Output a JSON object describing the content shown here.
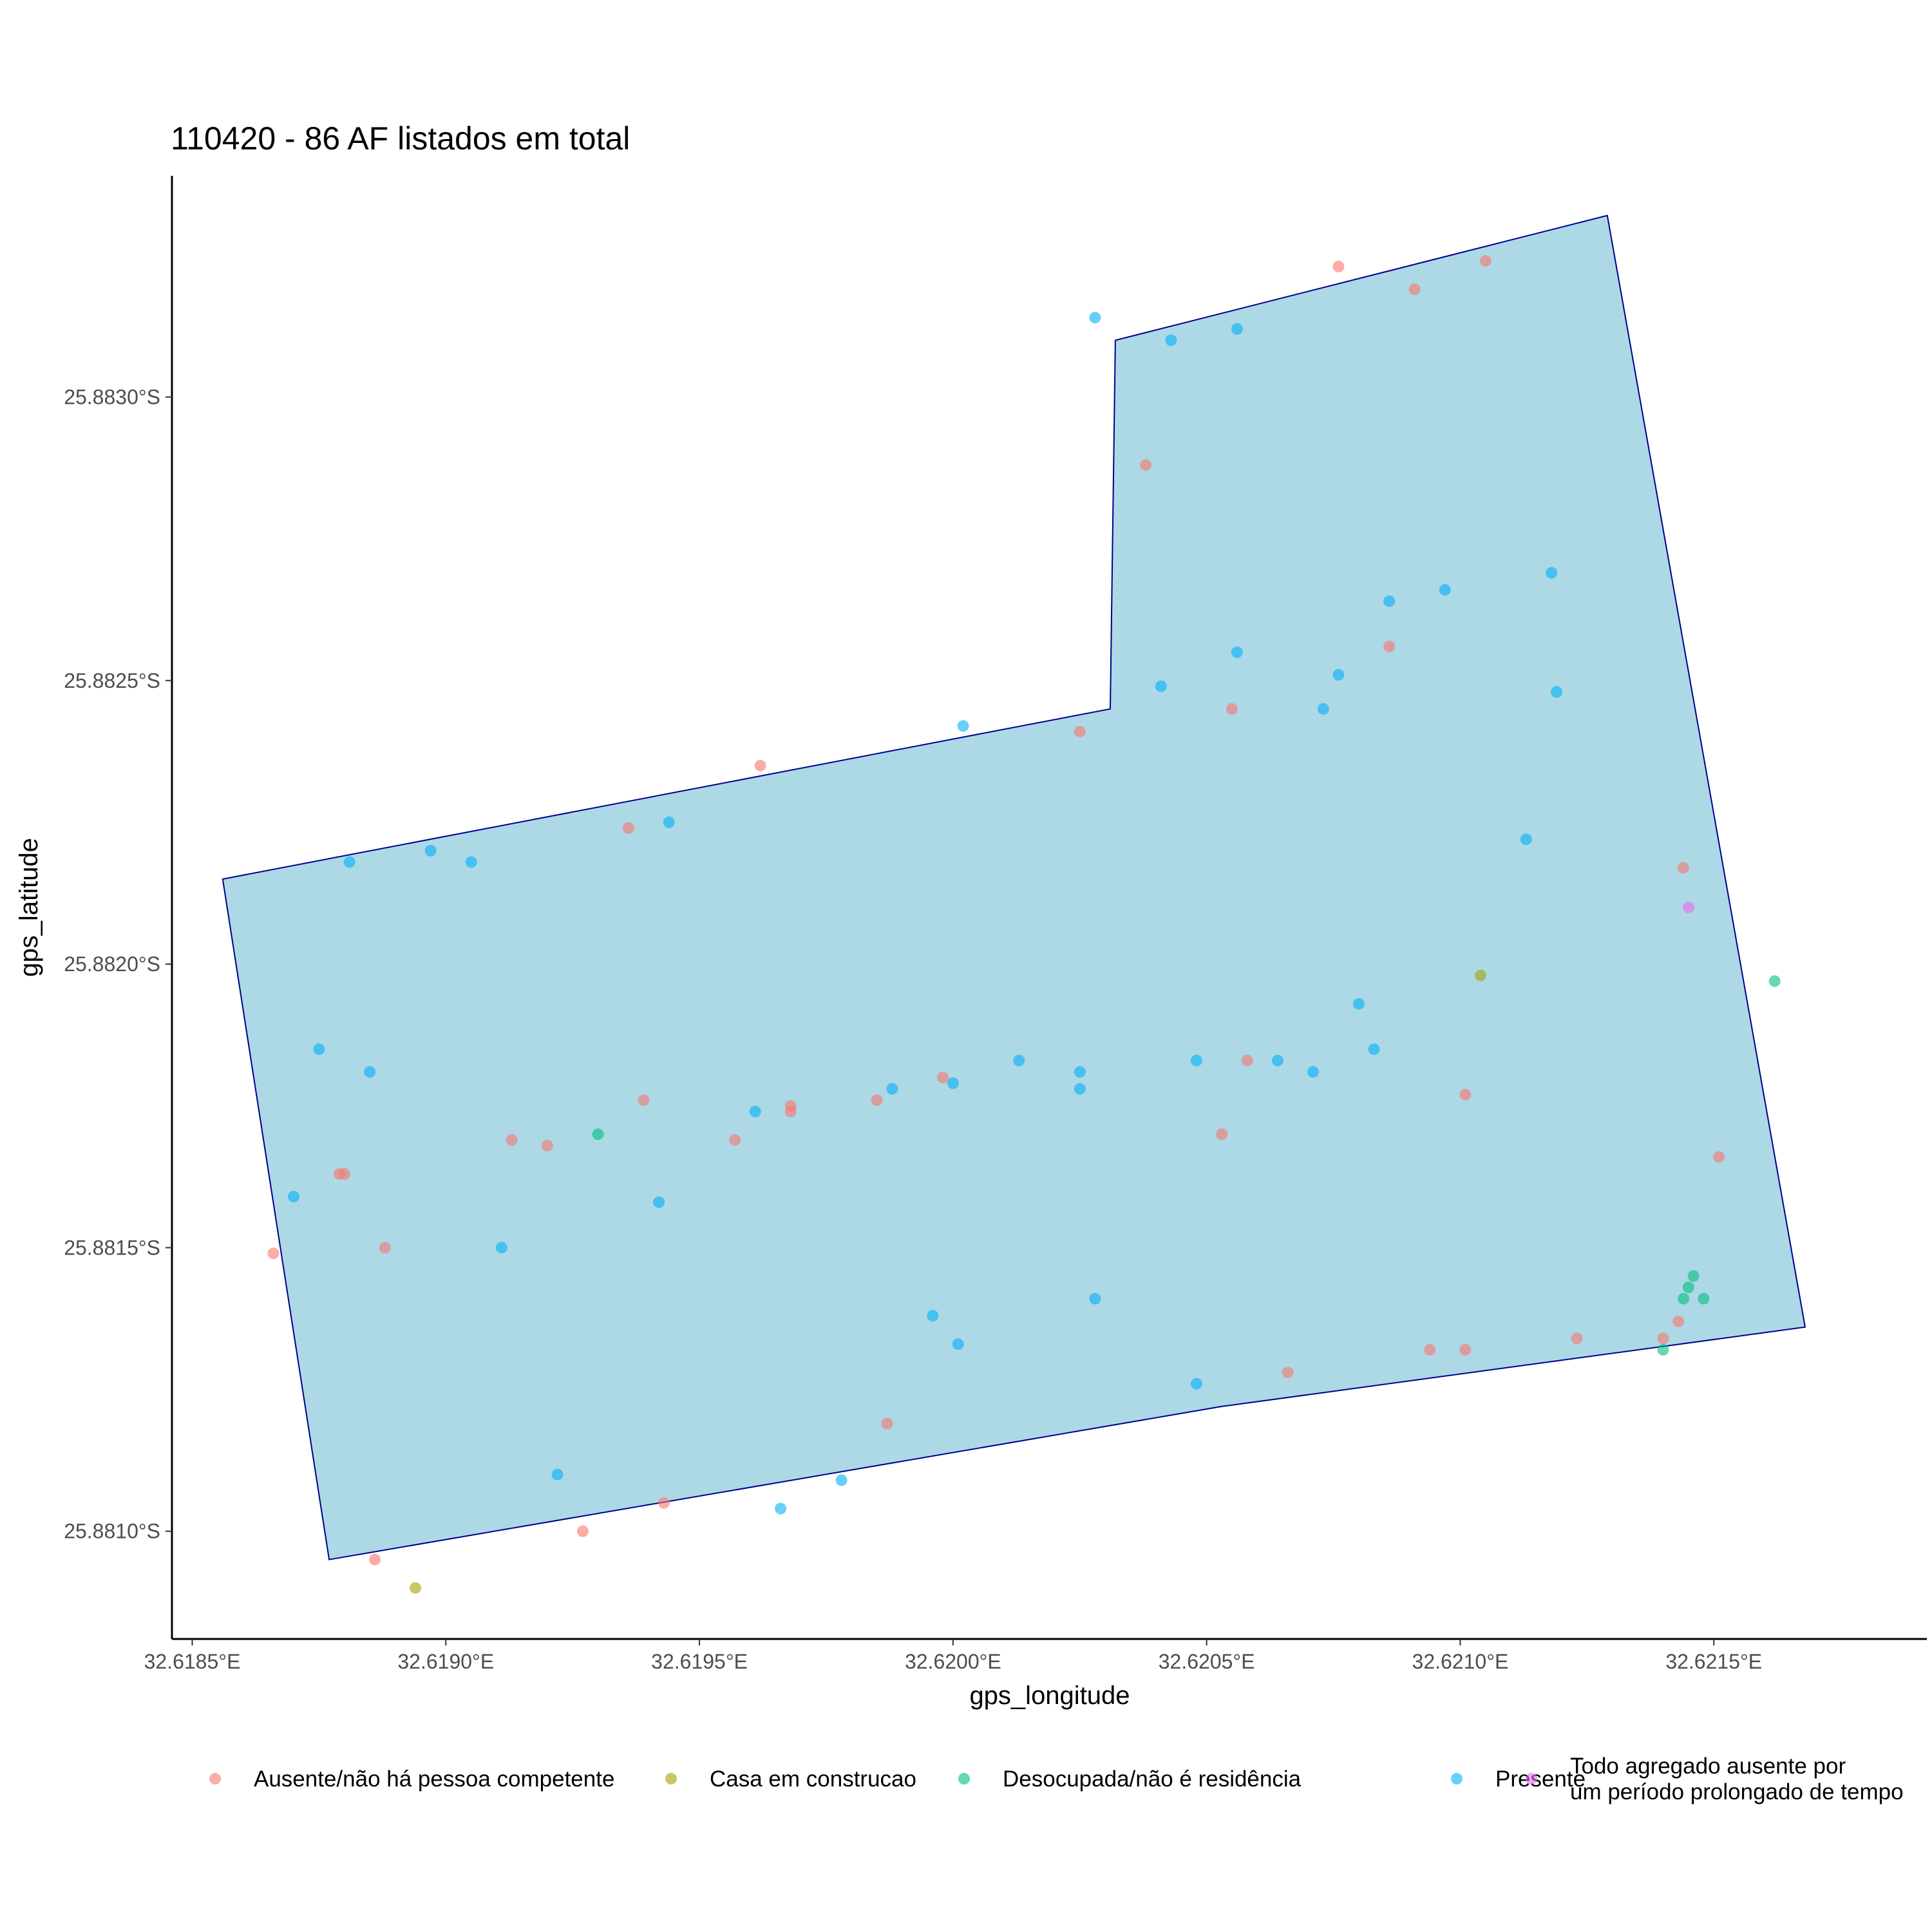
{
  "chart_data": {
    "type": "scatter",
    "title": "110420 - 86 AF listados em total",
    "xlabel": "gps_longitude",
    "ylabel": "gps_latitude",
    "xlim": [
      32.61846,
      32.62192
    ],
    "ylim": [
      25.88339,
      25.88081
    ],
    "x_ticks": [
      {
        "value": 32.6185,
        "label": "32.6185°E"
      },
      {
        "value": 32.619,
        "label": "32.6190°E"
      },
      {
        "value": 32.6195,
        "label": "32.6195°E"
      },
      {
        "value": 32.62,
        "label": "32.6200°E"
      },
      {
        "value": 32.6205,
        "label": "32.6205°E"
      },
      {
        "value": 32.621,
        "label": "32.6210°E"
      },
      {
        "value": 32.6215,
        "label": "32.6215°E"
      }
    ],
    "y_ticks": [
      {
        "value": 25.881,
        "label": "25.8810°S"
      },
      {
        "value": 25.8815,
        "label": "25.8815°S"
      },
      {
        "value": 25.882,
        "label": "25.8820°S"
      },
      {
        "value": 25.8825,
        "label": "25.8825°S"
      },
      {
        "value": 25.883,
        "label": "25.8830°S"
      }
    ],
    "grid": false,
    "legend_position": "bottom",
    "boundary": {
      "fill": "#add8e6",
      "stroke": "#00008b",
      "vertices": [
        [
          32.61877,
          25.88095
        ],
        [
          32.62053,
          25.88122
        ],
        [
          32.62168,
          25.88136
        ],
        [
          32.62129,
          25.88332
        ],
        [
          32.62032,
          25.8831
        ],
        [
          32.62031,
          25.88245
        ],
        [
          32.61856,
          25.88215
        ]
      ]
    },
    "series": [
      {
        "name": "Ausente/não há pessoa competente",
        "color": "#f8766d",
        "points": [
          [
            32.61886,
            25.88095
          ],
          [
            32.61927,
            25.881
          ],
          [
            32.61943,
            25.88105
          ],
          [
            32.61987,
            25.88119
          ],
          [
            32.62066,
            25.88128
          ],
          [
            32.62094,
            25.88132
          ],
          [
            32.62101,
            25.88132
          ],
          [
            32.62123,
            25.88134
          ],
          [
            32.6214,
            25.88134
          ],
          [
            32.62143,
            25.88137
          ],
          [
            32.61866,
            25.88149
          ],
          [
            32.61888,
            25.8815
          ],
          [
            32.61879,
            25.88163
          ],
          [
            32.6188,
            25.88163
          ],
          [
            32.61913,
            25.88169
          ],
          [
            32.6192,
            25.88168
          ],
          [
            32.61957,
            25.88169
          ],
          [
            32.61939,
            25.88176
          ],
          [
            32.61968,
            25.88174
          ],
          [
            32.61968,
            25.88175
          ],
          [
            32.61985,
            25.88176
          ],
          [
            32.61998,
            25.8818
          ],
          [
            32.62053,
            25.8817
          ],
          [
            32.62058,
            25.88183
          ],
          [
            32.62101,
            25.88177
          ],
          [
            32.62151,
            25.88166
          ],
          [
            32.62144,
            25.88217
          ],
          [
            32.61936,
            25.88224
          ],
          [
            32.61962,
            25.88235
          ],
          [
            32.62025,
            25.88241
          ],
          [
            32.62055,
            25.88245
          ],
          [
            32.62086,
            25.88256
          ],
          [
            32.62038,
            25.88288
          ],
          [
            32.62076,
            25.88323
          ],
          [
            32.62091,
            25.88319
          ],
          [
            32.62105,
            25.88324
          ]
        ]
      },
      {
        "name": "Casa em construcao",
        "color": "#a3a500",
        "points": [
          [
            32.61894,
            25.8809
          ],
          [
            32.62104,
            25.88198
          ]
        ]
      },
      {
        "name": "Desocupada/não é residência",
        "color": "#00bf7d",
        "points": [
          [
            32.6214,
            25.88132
          ],
          [
            32.62144,
            25.88141
          ],
          [
            32.62148,
            25.88141
          ],
          [
            32.62145,
            25.88143
          ],
          [
            32.62146,
            25.88145
          ],
          [
            32.6193,
            25.8817
          ],
          [
            32.62162,
            25.88197
          ]
        ]
      },
      {
        "name": "Presente",
        "color": "#00b0f6",
        "points": [
          [
            32.61966,
            25.88104
          ],
          [
            32.61978,
            25.88109
          ],
          [
            32.61922,
            25.8811
          ],
          [
            32.62048,
            25.88126
          ],
          [
            32.62001,
            25.88133
          ],
          [
            32.61996,
            25.88138
          ],
          [
            32.62028,
            25.88141
          ],
          [
            32.61911,
            25.8815
          ],
          [
            32.61942,
            25.88158
          ],
          [
            32.6187,
            25.88159
          ],
          [
            32.61961,
            25.88174
          ],
          [
            32.62,
            25.88179
          ],
          [
            32.61988,
            25.88178
          ],
          [
            32.62025,
            25.88178
          ],
          [
            32.62025,
            25.88181
          ],
          [
            32.61885,
            25.88181
          ],
          [
            32.62013,
            25.88183
          ],
          [
            32.62048,
            25.88183
          ],
          [
            32.62064,
            25.88183
          ],
          [
            32.62071,
            25.88181
          ],
          [
            32.62083,
            25.88185
          ],
          [
            32.61875,
            25.88185
          ],
          [
            32.6208,
            25.88193
          ],
          [
            32.61881,
            25.88218
          ],
          [
            32.61897,
            25.8822
          ],
          [
            32.61905,
            25.88218
          ],
          [
            32.61944,
            25.88225
          ],
          [
            32.62113,
            25.88222
          ],
          [
            32.62002,
            25.88242
          ],
          [
            32.62073,
            25.88245
          ],
          [
            32.62119,
            25.88248
          ],
          [
            32.62041,
            25.88249
          ],
          [
            32.62076,
            25.88251
          ],
          [
            32.62056,
            25.88255
          ],
          [
            32.62086,
            25.88264
          ],
          [
            32.62097,
            25.88266
          ],
          [
            32.62118,
            25.88269
          ],
          [
            32.62043,
            25.8831
          ],
          [
            32.62056,
            25.88312
          ],
          [
            32.62028,
            25.88314
          ]
        ]
      },
      {
        "name": "Todo agregado ausente por\num período prolongado de tempo",
        "color": "#e76bf3",
        "points": [
          [
            32.62145,
            25.8821
          ]
        ]
      }
    ]
  }
}
